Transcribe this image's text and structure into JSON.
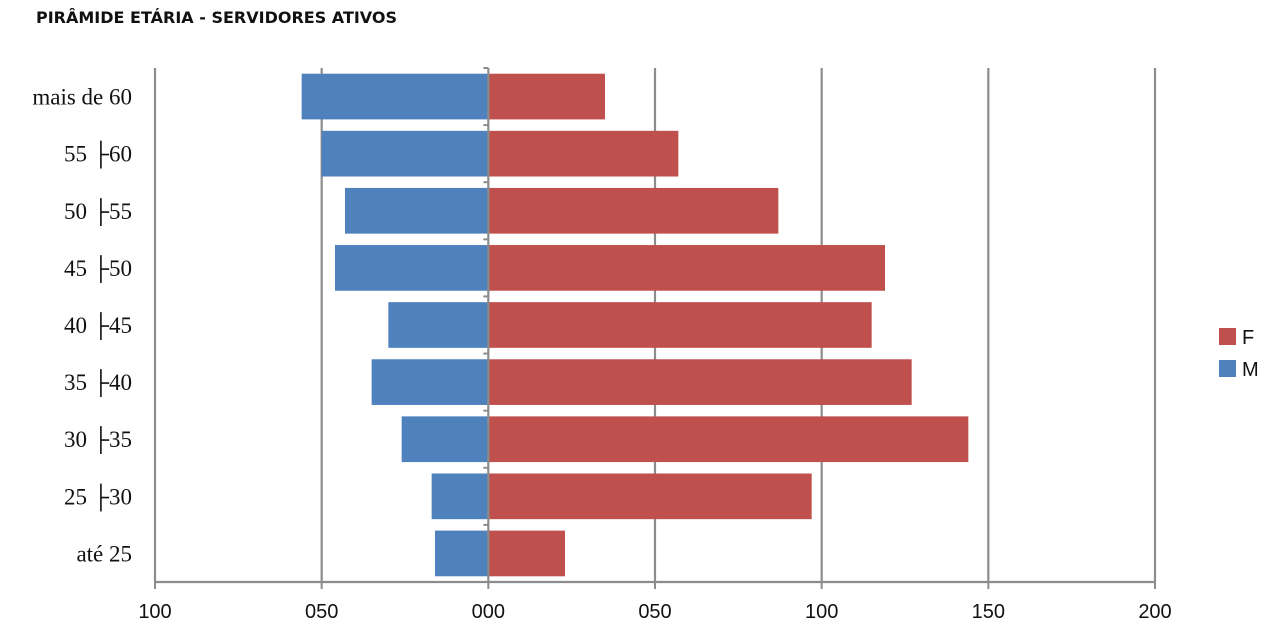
{
  "chart_data": {
    "type": "bar",
    "orientation": "horizontal",
    "title": "PIRÂMIDE ETÁRIA - SERVIDORES ATIVOS",
    "categories": [
      "mais de 60",
      "55 ├60",
      "50 ├55",
      "45 ├50",
      "40 ├45",
      "35 ├40",
      "30 ├35",
      "25 ├30",
      "até 25"
    ],
    "series": [
      {
        "name": "F",
        "color": "#c0504d",
        "values": [
          35,
          57,
          87,
          119,
          115,
          127,
          144,
          97,
          23
        ]
      },
      {
        "name": "M",
        "color": "#4f81bd",
        "values": [
          -56,
          -50,
          -43,
          -46,
          -30,
          -35,
          -26,
          -17,
          -16
        ]
      }
    ],
    "xlim": [
      -100,
      200
    ],
    "xticks": [
      -100,
      -50,
      0,
      50,
      100,
      150,
      200
    ],
    "xtick_labels": [
      "100",
      "050",
      "000",
      "050",
      "100",
      "150",
      "200"
    ],
    "grid": "vertical",
    "legend_position": "right"
  }
}
